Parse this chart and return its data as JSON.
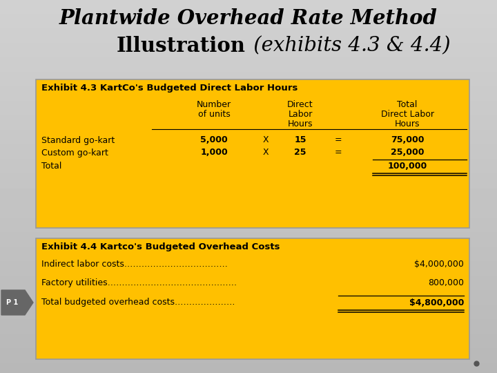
{
  "title_line1": "Plantwide Overhead Rate Method",
  "title_line2_bold": "Illustration",
  "title_line2_italic": " (exhibits 4.3 & 4.4)",
  "bg_color": "#cccccc",
  "table_bg": "#FFC000",
  "exhibit1_title": "Exhibit 4.3 KartCo's Budgeted Direct Labor Hours",
  "exhibit2_title": "Exhibit 4.4 Kartco's Budgeted Overhead Costs",
  "rows": [
    {
      "label": "Standard go-kart",
      "units": "5,000",
      "x": "X",
      "dlh": "15",
      "eq": "=",
      "total": "75,000"
    },
    {
      "label": "Custom go-kart",
      "units": "1,000",
      "x": "X",
      "dlh": "25",
      "eq": "=",
      "total": "25,000"
    }
  ],
  "total_label": "Total",
  "total_value": "100,000",
  "cost_rows": [
    {
      "label": "Indirect labor costs………………………………",
      "value": "$4,000,000"
    },
    {
      "label": "Factory utilities………………………………………",
      "value": "800,000"
    },
    {
      "label": "Total budgeted overhead costs…………………",
      "value": "$4,800,000"
    }
  ],
  "p1_label": "P 1",
  "p1_color": "#666666"
}
